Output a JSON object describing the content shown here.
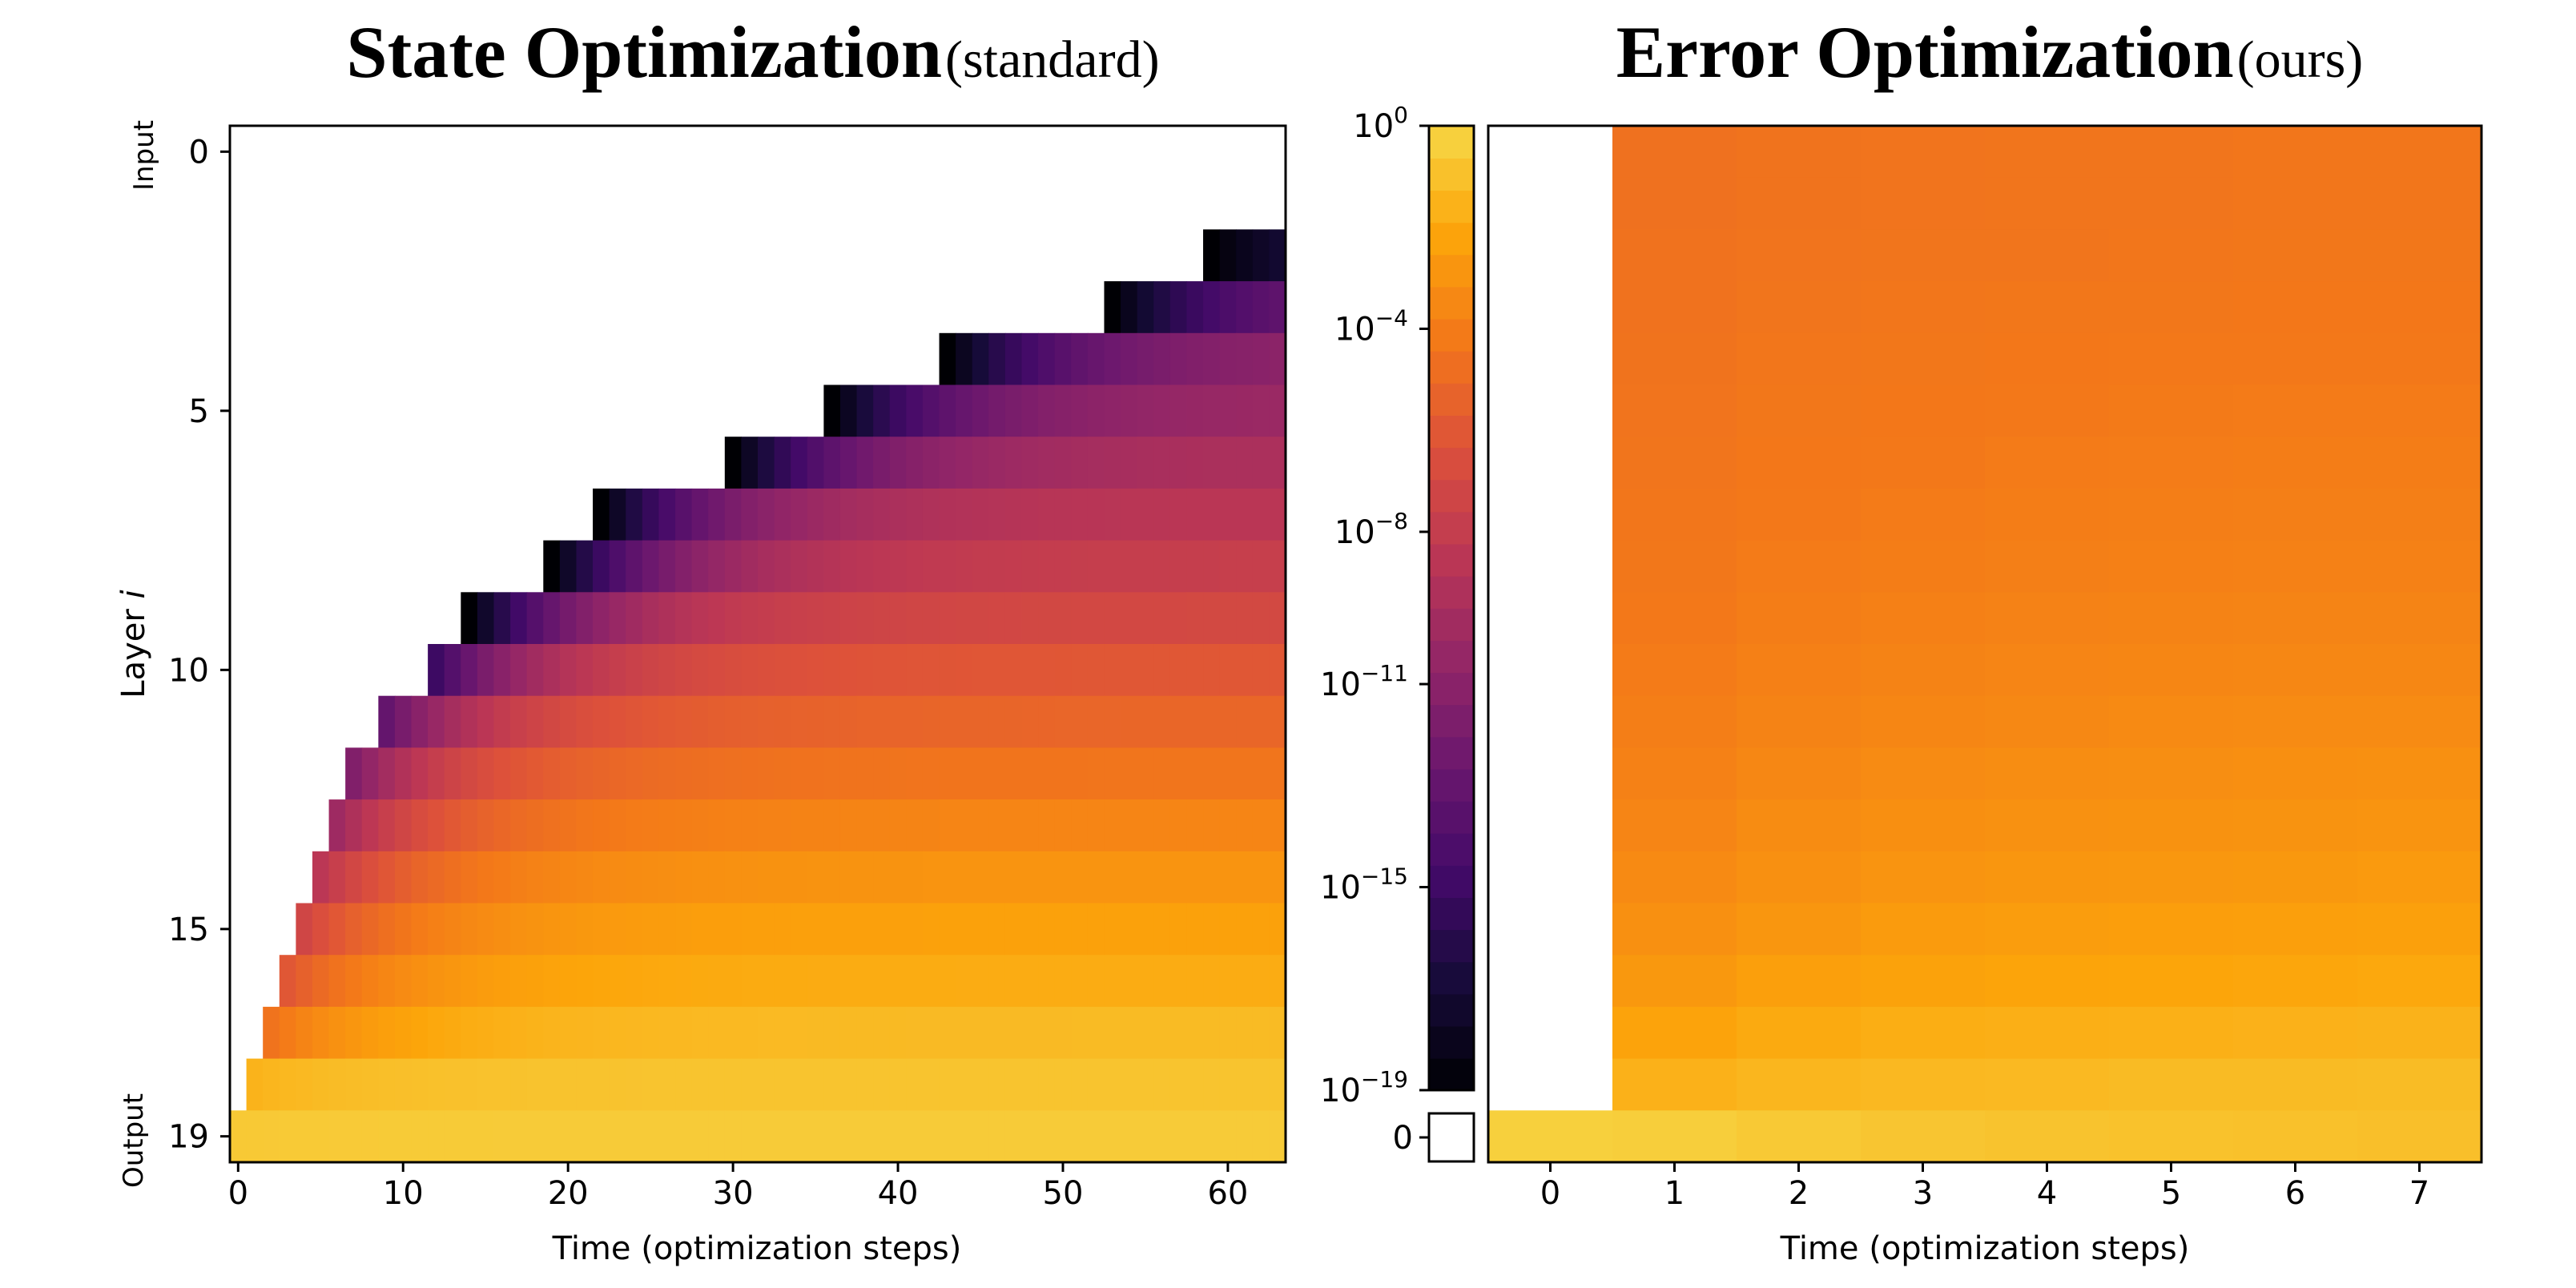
{
  "chart_data": [
    {
      "type": "heatmap",
      "title": "State Optimization",
      "title_suffix": "(standard)",
      "xlabel": "Time (optimization steps)",
      "ylabel": "Layer ",
      "ylabel_italic": "i",
      "xlim": [
        -0.5,
        63.5
      ],
      "ylim": [
        -0.5,
        19.5
      ],
      "x_ticks": [
        0,
        10,
        20,
        30,
        40,
        50,
        60
      ],
      "y_ticks": [
        0,
        5,
        10,
        15,
        19
      ],
      "y_annotations": [
        {
          "at": 0,
          "text": "Input"
        },
        {
          "at": 19,
          "text": "Output"
        }
      ],
      "layers": [
        0,
        1,
        2,
        3,
        4,
        5,
        6,
        7,
        8,
        9,
        10,
        11,
        12,
        13,
        14,
        15,
        16,
        17,
        18,
        19
      ],
      "first_step_per_layer": [
        null,
        null,
        59,
        53,
        43,
        36,
        30,
        22,
        19,
        14,
        12,
        9,
        7,
        6,
        5,
        4,
        3,
        2,
        1,
        0
      ],
      "start_log10_per_layer": [
        null,
        null,
        -19,
        -19,
        -19,
        -19,
        -19,
        -19,
        -19,
        -19,
        -15,
        -13,
        -11.5,
        -10,
        -8.5,
        -7.2,
        -6,
        -4.5,
        -1.5,
        -0.6
      ],
      "end_log10_per_layer": [
        null,
        null,
        -15,
        -11.5,
        -10.5,
        -10,
        -9.2,
        -8.5,
        -7.8,
        -7,
        -6,
        -5.2,
        -4.4,
        -3.6,
        -2.9,
        -2.3,
        -1.8,
        -1.2,
        -0.8,
        -0.5
      ],
      "color_scale": "log10 magnitude, inferno colormap",
      "empty_cell_meaning": "blank (not yet computed)"
    },
    {
      "type": "heatmap",
      "title": "Error Optimization",
      "title_suffix": "(ours)",
      "xlabel": "Time (optimization steps)",
      "xlim": [
        -0.5,
        7.5
      ],
      "ylim": [
        -0.5,
        19.5
      ],
      "x_ticks": [
        0,
        1,
        2,
        3,
        4,
        5,
        6,
        7
      ],
      "log10_values_by_layer": [
        [
          null,
          -4.6,
          -4.5,
          -4.45,
          -4.4,
          -4.4,
          -4.35,
          -4.35
        ],
        [
          null,
          -4.6,
          -4.5,
          -4.45,
          -4.4,
          -4.4,
          -4.35,
          -4.35
        ],
        [
          null,
          -4.55,
          -4.45,
          -4.4,
          -4.4,
          -4.35,
          -4.3,
          -4.3
        ],
        [
          null,
          -4.55,
          -4.4,
          -4.35,
          -4.3,
          -4.3,
          -4.25,
          -4.25
        ],
        [
          null,
          -4.5,
          -4.35,
          -4.3,
          -4.25,
          -4.2,
          -4.2,
          -4.2
        ],
        [
          null,
          -4.45,
          -4.3,
          -4.25,
          -4.2,
          -4.15,
          -4.1,
          -4.1
        ],
        [
          null,
          -4.4,
          -4.25,
          -4.2,
          -4.1,
          -4.05,
          -4.0,
          -4.0
        ],
        [
          null,
          -4.35,
          -4.2,
          -4.1,
          -4.0,
          -3.95,
          -3.9,
          -3.9
        ],
        [
          null,
          -4.3,
          -4.1,
          -4.0,
          -3.9,
          -3.85,
          -3.8,
          -3.8
        ],
        [
          null,
          -4.2,
          -4.0,
          -3.85,
          -3.75,
          -3.7,
          -3.65,
          -3.65
        ],
        [
          null,
          -4.1,
          -3.85,
          -3.7,
          -3.6,
          -3.55,
          -3.5,
          -3.5
        ],
        [
          null,
          -3.95,
          -3.7,
          -3.55,
          -3.45,
          -3.4,
          -3.35,
          -3.35
        ],
        [
          null,
          -3.8,
          -3.5,
          -3.35,
          -3.25,
          -3.2,
          -3.15,
          -3.1
        ],
        [
          null,
          -3.6,
          -3.3,
          -3.15,
          -3.05,
          -3.0,
          -2.95,
          -2.9
        ],
        [
          null,
          -3.4,
          -3.1,
          -2.9,
          -2.8,
          -2.75,
          -2.7,
          -2.65
        ],
        [
          null,
          -3.1,
          -2.8,
          -2.6,
          -2.5,
          -2.45,
          -2.4,
          -2.35
        ],
        [
          null,
          -2.7,
          -2.4,
          -2.25,
          -2.15,
          -2.1,
          -2.05,
          -2.0
        ],
        [
          null,
          -2.2,
          -1.9,
          -1.75,
          -1.7,
          -1.65,
          -1.6,
          -1.55
        ],
        [
          null,
          -1.6,
          -1.4,
          -1.3,
          -1.25,
          -1.2,
          -1.2,
          -1.15
        ],
        [
          -0.3,
          -0.4,
          -0.6,
          -0.75,
          -0.85,
          -0.9,
          -0.95,
          -1.0
        ]
      ]
    }
  ],
  "colorbar": {
    "scale": "log10",
    "min_exponent": -19,
    "max_exponent": 0,
    "ticks": [
      {
        "base": "10",
        "exp": "0",
        "value": 0
      },
      {
        "base": "10",
        "exp": "−4",
        "value": -4
      },
      {
        "base": "10",
        "exp": "−8",
        "value": -8
      },
      {
        "base": "10",
        "exp": "−11",
        "value": -11
      },
      {
        "base": "10",
        "exp": "−15",
        "value": -15
      },
      {
        "base": "10",
        "exp": "−19",
        "value": -19
      }
    ],
    "zero_label": "0"
  }
}
